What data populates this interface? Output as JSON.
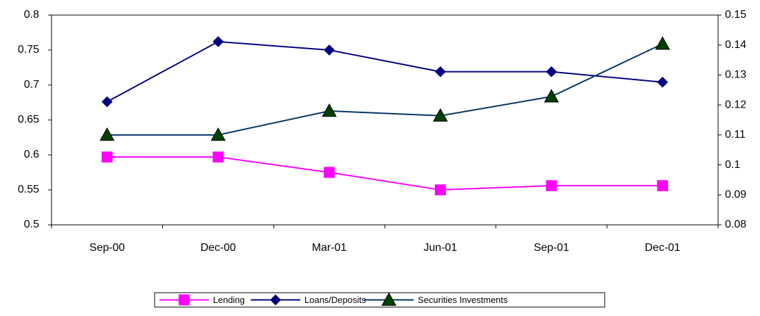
{
  "chart_data": {
    "type": "line",
    "categories": [
      "Sep-00",
      "Dec-00",
      "Mar-01",
      "Jun-01",
      "Sep-01",
      "Dec-01"
    ],
    "series": [
      {
        "name": "Lending",
        "color": "#ff00ff",
        "marker": "square",
        "values": [
          0.597,
          0.597,
          0.575,
          0.55,
          0.556,
          0.556
        ]
      },
      {
        "name": "Loans/Deposits",
        "color": "#000080",
        "marker": "diamond",
        "values": [
          0.676,
          0.762,
          0.75,
          0.719,
          0.719,
          0.704
        ]
      },
      {
        "name": "Securities Investments",
        "color": "#003366",
        "marker": "triangle",
        "marker_color": "#004000",
        "axis": "y2",
        "values": [
          0.11,
          0.11,
          0.118,
          0.1164,
          0.1228,
          0.1404
        ]
      }
    ],
    "ylim": [
      0.5,
      0.8
    ],
    "yticks": [
      0.5,
      0.55,
      0.6,
      0.65,
      0.7,
      0.75,
      0.8
    ],
    "y2lim": [
      0.08,
      0.15
    ],
    "y2ticks": [
      0.08,
      0.09,
      0.1,
      0.11,
      0.12,
      0.13,
      0.14,
      0.15
    ],
    "legend": "bottom"
  }
}
